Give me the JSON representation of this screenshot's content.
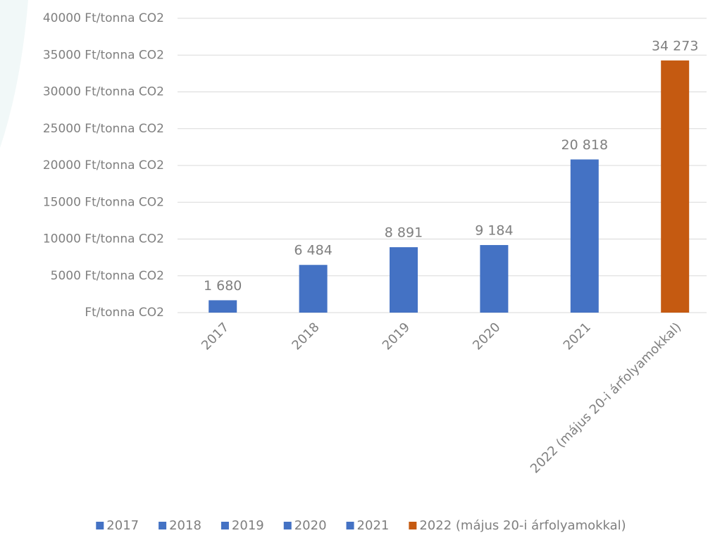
{
  "chart_data": {
    "type": "bar",
    "categories": [
      "2017",
      "2018",
      "2019",
      "2020",
      "2021",
      "2022 (május 20-i árfolyamokkal)"
    ],
    "values": [
      1680,
      6484,
      8891,
      9184,
      20818,
      34273
    ],
    "value_labels": [
      "1 680",
      "6 484",
      "8 891",
      "9 184",
      "20 818",
      "34 273"
    ],
    "colors": [
      "#4472c4",
      "#4472c4",
      "#4472c4",
      "#4472c4",
      "#4472c4",
      "#c55a11"
    ],
    "ylim": [
      0,
      40000
    ],
    "yticks": [
      {
        "value": 0,
        "label": "Ft/tonna CO2"
      },
      {
        "value": 5000,
        "label": "5000 Ft/tonna CO2"
      },
      {
        "value": 10000,
        "label": "10000 Ft/tonna CO2"
      },
      {
        "value": 15000,
        "label": "15000 Ft/tonna CO2"
      },
      {
        "value": 20000,
        "label": "20000 Ft/tonna CO2"
      },
      {
        "value": 25000,
        "label": "25000 Ft/tonna CO2"
      },
      {
        "value": 30000,
        "label": "30000 Ft/tonna CO2"
      },
      {
        "value": 35000,
        "label": "35000 Ft/tonna CO2"
      },
      {
        "value": 40000,
        "label": "40000 Ft/tonna CO2"
      }
    ],
    "grid": true,
    "legend": "bottom"
  }
}
